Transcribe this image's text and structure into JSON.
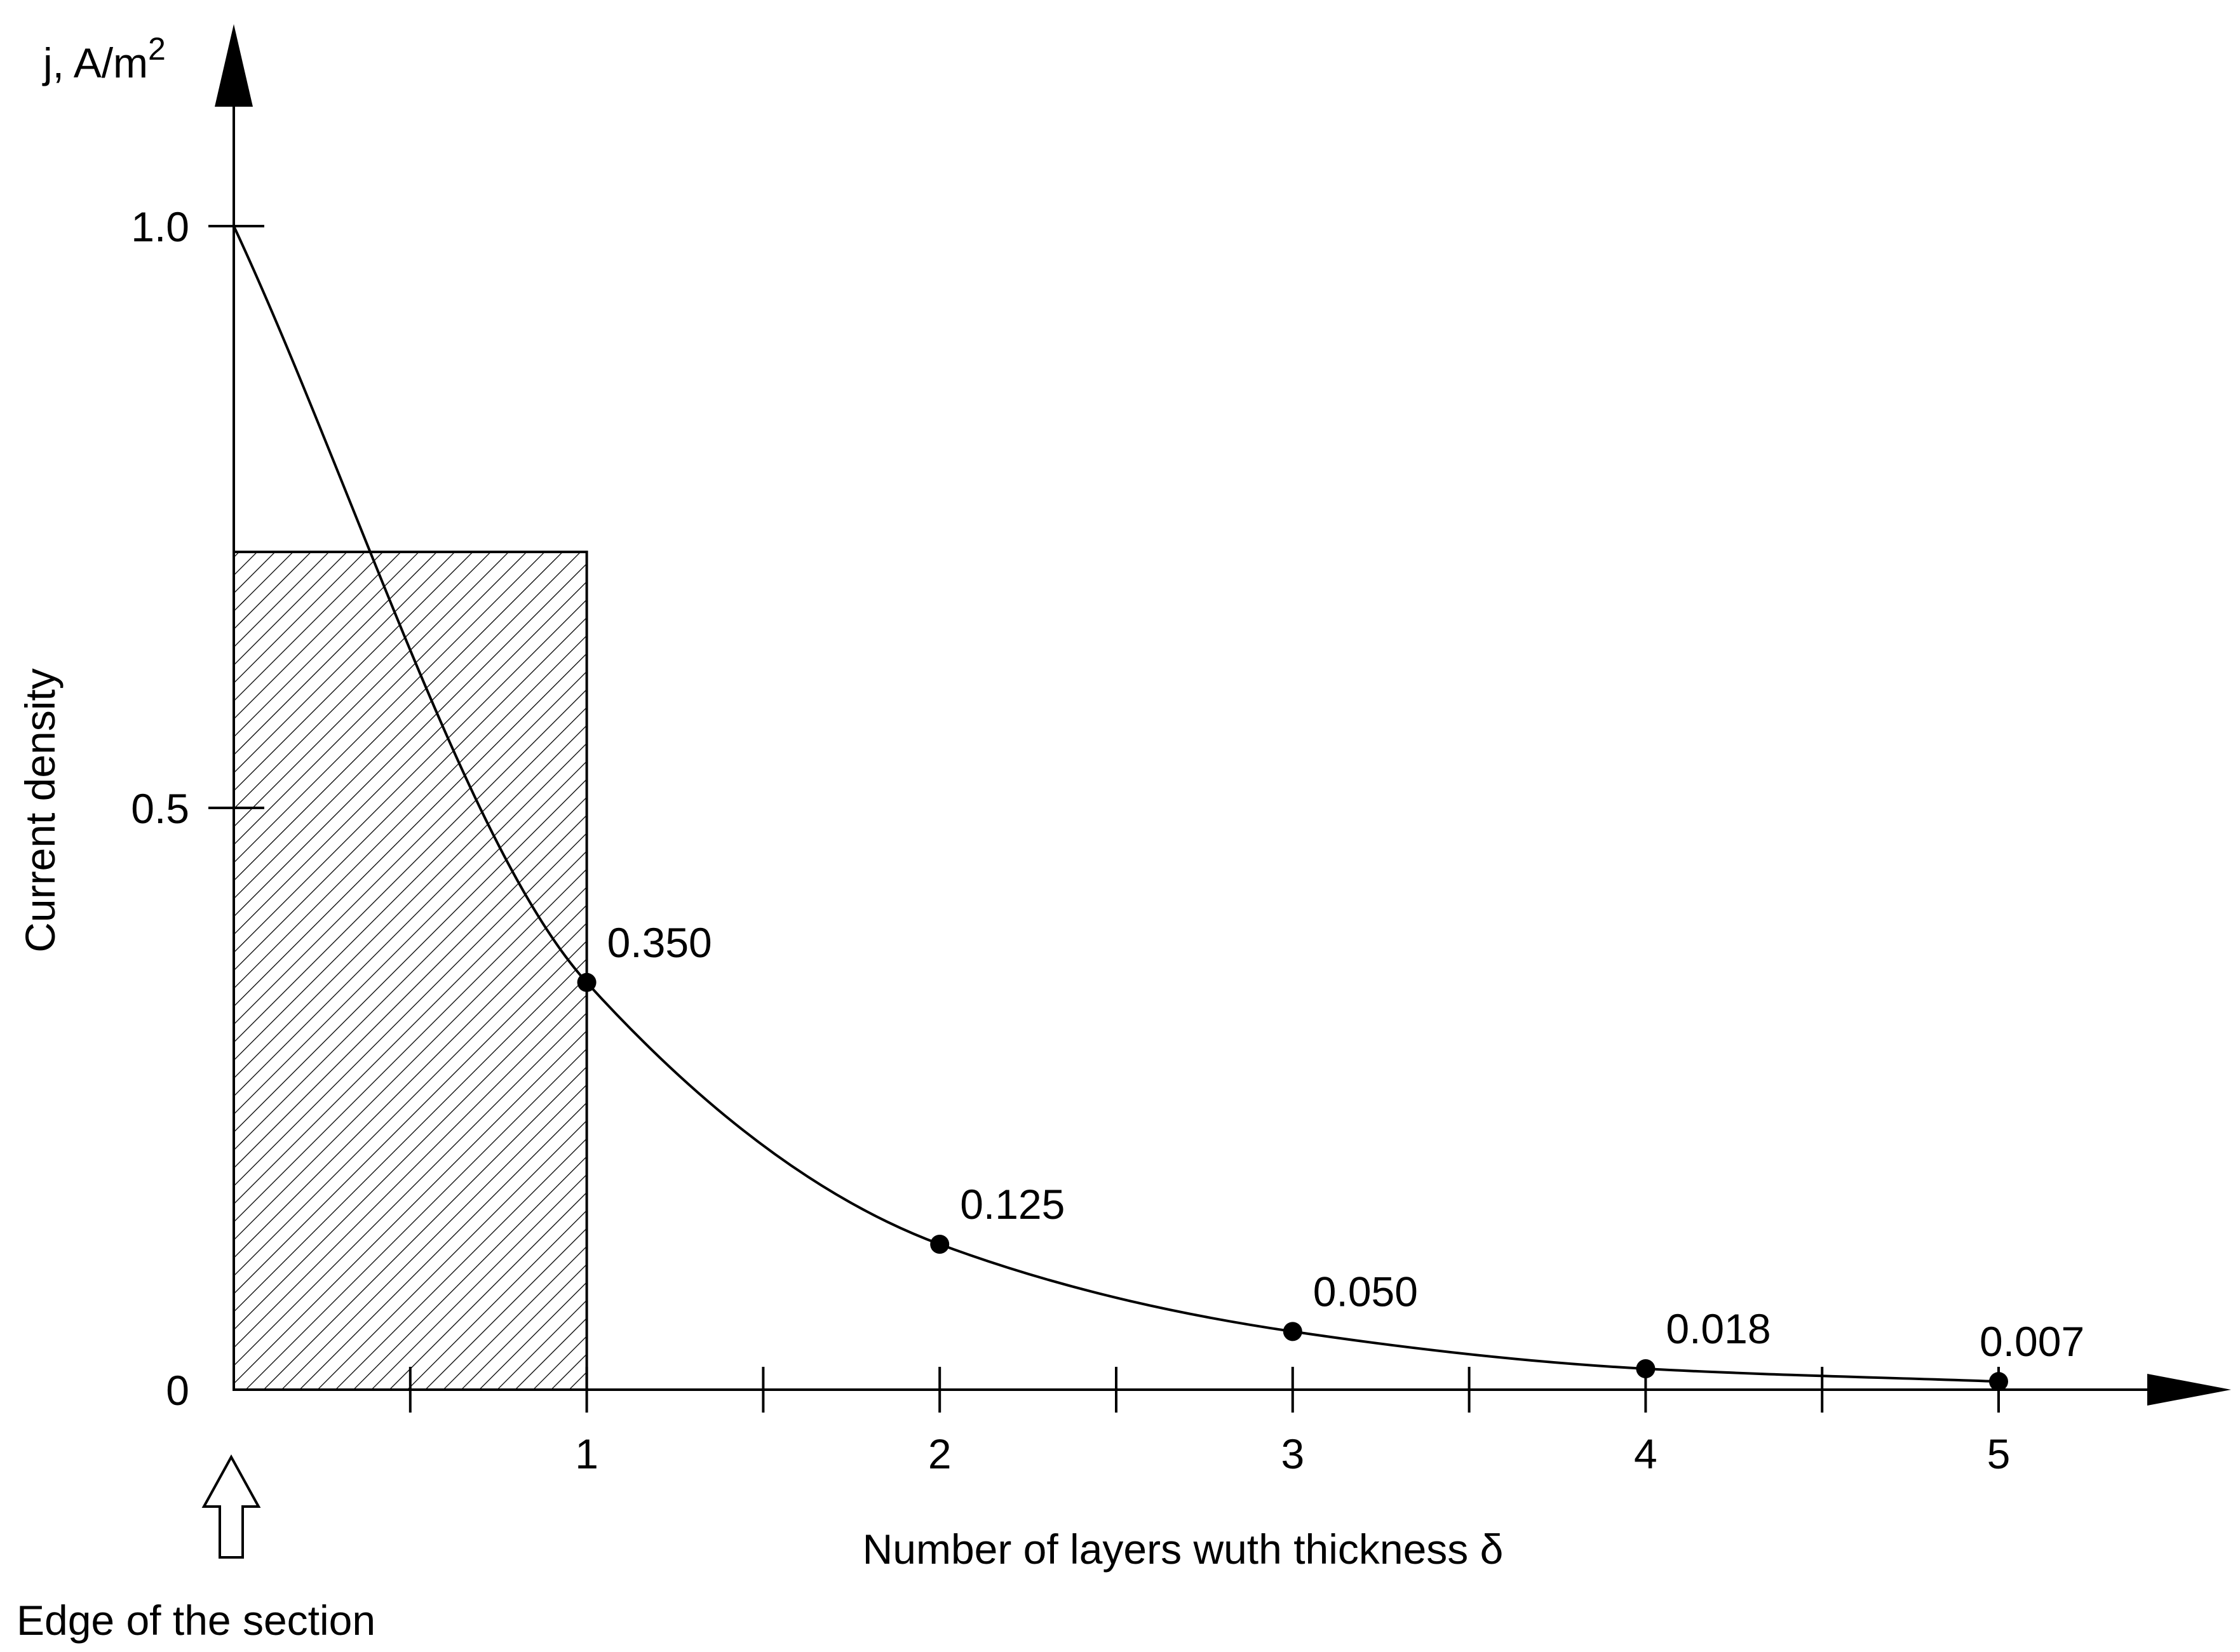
{
  "chart_data": {
    "type": "line",
    "title": "",
    "ylabel": "Current density",
    "yunit": {
      "base": "j, A/m",
      "superscript": "2"
    },
    "xlabel": "Number of layers wuth thickness δ",
    "xlim": [
      0,
      5.5
    ],
    "ylim": [
      0,
      1.1
    ],
    "x_ticks_major": [
      1,
      2,
      3,
      4,
      5
    ],
    "x_ticks_minor": [
      0.5,
      1.5,
      2.5,
      3.5,
      4.5
    ],
    "y_ticks": [
      {
        "value": 0,
        "label": "0"
      },
      {
        "value": 0.5,
        "label": "0.5"
      },
      {
        "value": 1.0,
        "label": "1.0"
      }
    ],
    "grid": false,
    "series": [
      {
        "x": [
          0,
          1,
          2,
          3,
          4,
          5
        ],
        "y": [
          1.0,
          0.35,
          0.125,
          0.05,
          0.018,
          0.007
        ]
      }
    ],
    "data_labels": [
      {
        "x": 1,
        "y": 0.35,
        "text": "0.350"
      },
      {
        "x": 2,
        "y": 0.125,
        "text": "0.125"
      },
      {
        "x": 3,
        "y": 0.05,
        "text": "0.050"
      },
      {
        "x": 4,
        "y": 0.018,
        "text": "0.018"
      },
      {
        "x": 5,
        "y": 0.007,
        "text": "0.007"
      }
    ],
    "hatched_region": {
      "x_from": 0,
      "x_to": 1,
      "y": 0.72
    },
    "annotation": "Edge of the section"
  }
}
